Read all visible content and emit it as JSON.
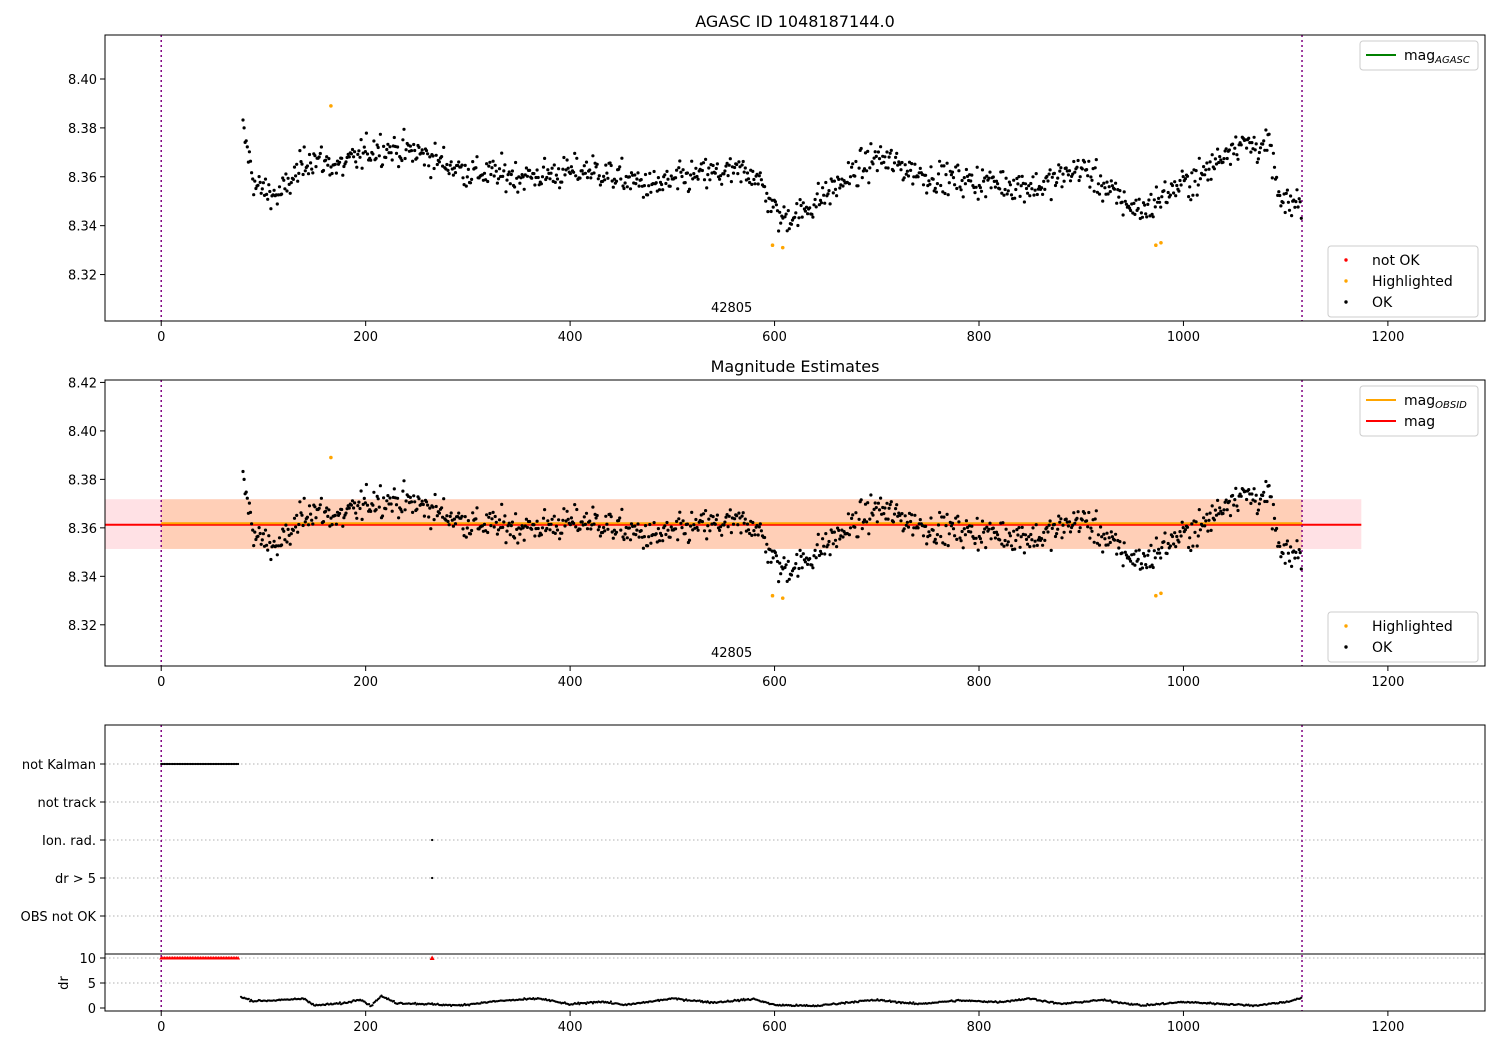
{
  "chart_data": [
    {
      "type": "scatter",
      "title": "AGASC ID 1048187144.0",
      "xlim": [
        -55,
        1295
      ],
      "ylim": [
        8.301,
        8.418
      ],
      "xticks": [
        0,
        200,
        400,
        600,
        800,
        1000,
        1200
      ],
      "yticks": [
        8.32,
        8.34,
        8.36,
        8.38,
        8.4
      ],
      "obsid_label": "42805",
      "obsid_label_x": 558,
      "vlines": [
        0,
        1116
      ],
      "legend_upper": [
        {
          "label": "mag",
          "sub": "AGASC",
          "color": "#008000"
        }
      ],
      "legend_lower": [
        {
          "label": "not OK",
          "color": "#ff0000"
        },
        {
          "label": "Highlighted",
          "color": "#ffa500"
        },
        {
          "label": "OK",
          "color": "#000000"
        }
      ],
      "highlighted": [
        [
          166,
          8.389
        ],
        [
          598,
          8.332
        ],
        [
          608,
          8.331
        ],
        [
          973,
          8.332
        ],
        [
          978,
          8.333
        ]
      ],
      "trend": [
        [
          80,
          8.379
        ],
        [
          92,
          8.356
        ],
        [
          115,
          8.352
        ],
        [
          145,
          8.368
        ],
        [
          175,
          8.364
        ],
        [
          210,
          8.372
        ],
        [
          250,
          8.37
        ],
        [
          300,
          8.362
        ],
        [
          360,
          8.36
        ],
        [
          420,
          8.363
        ],
        [
          480,
          8.356
        ],
        [
          530,
          8.361
        ],
        [
          580,
          8.362
        ],
        [
          605,
          8.343
        ],
        [
          625,
          8.345
        ],
        [
          660,
          8.356
        ],
        [
          700,
          8.368
        ],
        [
          750,
          8.36
        ],
        [
          800,
          8.358
        ],
        [
          860,
          8.356
        ],
        [
          900,
          8.364
        ],
        [
          940,
          8.35
        ],
        [
          960,
          8.346
        ],
        [
          990,
          8.355
        ],
        [
          1020,
          8.361
        ],
        [
          1050,
          8.374
        ],
        [
          1085,
          8.372
        ],
        [
          1095,
          8.348
        ],
        [
          1116,
          8.35
        ]
      ]
    },
    {
      "type": "scatter",
      "title": "Magnitude Estimates",
      "xlim": [
        -55,
        1295
      ],
      "ylim": [
        8.303,
        8.421
      ],
      "xticks": [
        0,
        200,
        400,
        600,
        800,
        1000,
        1200
      ],
      "yticks": [
        8.32,
        8.34,
        8.36,
        8.38,
        8.4,
        8.42
      ],
      "obsid_label": "42805",
      "obsid_label_x": 558,
      "vlines": [
        0,
        1116
      ],
      "mag": 8.3613,
      "mag_band": [
        8.3513,
        8.3718
      ],
      "mag_extent": [
        -55,
        1174
      ],
      "mag_obsid": 8.3613,
      "mag_obsid_band": [
        8.3513,
        8.3718
      ],
      "mag_obsid_extent": [
        0,
        1116
      ],
      "legend_upper": [
        {
          "label": "mag",
          "sub": "OBSID",
          "color": "#ffa500"
        },
        {
          "label": "mag",
          "sub": "",
          "color": "#ff0000"
        }
      ],
      "legend_lower": [
        {
          "label": "Highlighted",
          "color": "#ffa500"
        },
        {
          "label": "OK",
          "color": "#000000"
        }
      ]
    },
    {
      "type": "scatter",
      "title": "",
      "xlim": [
        -55,
        1295
      ],
      "xticks": [
        0,
        200,
        400,
        600,
        800,
        1000,
        1200
      ],
      "vlines": [
        0,
        1116
      ],
      "flag_categories": [
        "not Kalman",
        "not track",
        "Ion. rad.",
        "dr > 5",
        "OBS not OK"
      ],
      "flags": {
        "not Kalman": {
          "x_range": [
            0,
            76
          ]
        },
        "not track": {
          "x_range": null
        },
        "Ion. rad.": {
          "points": [
            265
          ]
        },
        "dr > 5": {
          "points": [
            265
          ]
        },
        "OBS not OK": {
          "x_range": null
        }
      },
      "dr_ylabel": "dr",
      "dr_yticks": [
        0,
        5,
        10
      ],
      "dr_ylim": [
        -0.6,
        10.8
      ],
      "dr_clipped": {
        "x_range": [
          0,
          76
        ],
        "points": [
          265
        ],
        "value": 10
      },
      "dr_trend": [
        [
          78,
          2.2
        ],
        [
          90,
          1.4
        ],
        [
          120,
          1.6
        ],
        [
          140,
          1.9
        ],
        [
          150,
          0.5
        ],
        [
          180,
          1.0
        ],
        [
          195,
          1.8
        ],
        [
          205,
          0.4
        ],
        [
          215,
          2.4
        ],
        [
          230,
          1.0
        ],
        [
          260,
          0.8
        ],
        [
          290,
          0.5
        ],
        [
          330,
          1.4
        ],
        [
          370,
          1.9
        ],
        [
          400,
          0.7
        ],
        [
          430,
          1.3
        ],
        [
          455,
          0.6
        ],
        [
          500,
          1.9
        ],
        [
          540,
          1.1
        ],
        [
          580,
          1.8
        ],
        [
          600,
          0.6
        ],
        [
          640,
          0.4
        ],
        [
          680,
          1.3
        ],
        [
          700,
          1.6
        ],
        [
          740,
          0.8
        ],
        [
          780,
          1.5
        ],
        [
          820,
          1.2
        ],
        [
          850,
          1.9
        ],
        [
          880,
          0.8
        ],
        [
          920,
          1.6
        ],
        [
          960,
          0.5
        ],
        [
          1000,
          1.2
        ],
        [
          1040,
          0.8
        ],
        [
          1070,
          0.5
        ],
        [
          1100,
          1.2
        ],
        [
          1116,
          2.0
        ]
      ]
    }
  ]
}
